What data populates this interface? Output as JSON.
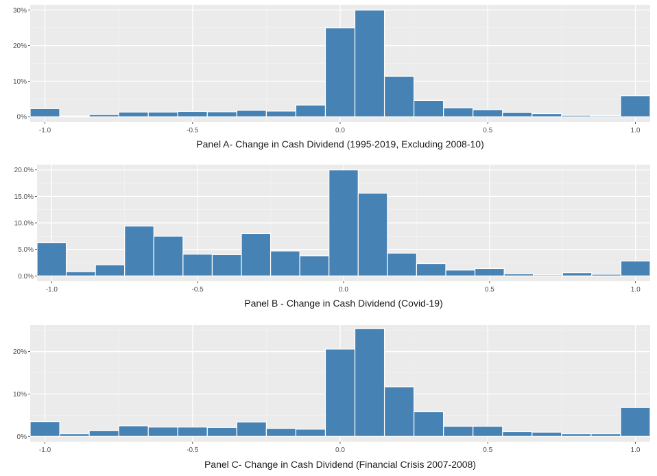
{
  "colors": {
    "panel_bg": "#EBEBEB",
    "grid_major": "#FFFFFF",
    "grid_minor": "#F5F5F5",
    "bar_fill": "#4682B4",
    "bar_stroke": "#FFFFFF",
    "tick_text": "#4D4D4D",
    "title_text": "#1A1A1A"
  },
  "chart_data": [
    {
      "type": "bar",
      "subtype": "histogram",
      "xlabel": "Panel A- Change in Cash Dividend (1995-2019, Excluding 2008-10)",
      "ylabel": "",
      "grid": true,
      "legend": "none",
      "xlim": [
        -1.05,
        1.05
      ],
      "ylim": [
        0,
        30
      ],
      "x_ticks": [
        -1.0,
        -0.5,
        0.0,
        0.5,
        1.0
      ],
      "x_tick_labels": [
        "-1.0",
        "-0.5",
        "0.0",
        "0.5",
        "1.0"
      ],
      "y_ticks": [
        0,
        10,
        20,
        30
      ],
      "y_tick_labels": [
        "0%",
        "10%",
        "20%",
        "30%"
      ],
      "bin_width": 0.1,
      "bin_centers": [
        -1.0,
        -0.9,
        -0.8,
        -0.7,
        -0.6,
        -0.5,
        -0.4,
        -0.3,
        -0.2,
        -0.1,
        0.0,
        0.1,
        0.2,
        0.3,
        0.4,
        0.5,
        0.6,
        0.7,
        0.8,
        0.9,
        1.0
      ],
      "values": [
        2.3,
        0.2,
        0.6,
        1.3,
        1.3,
        1.5,
        1.4,
        1.8,
        1.6,
        3.3,
        25.0,
        30.0,
        11.4,
        4.6,
        2.5,
        2.0,
        1.2,
        0.9,
        0.4,
        0.3,
        5.9
      ]
    },
    {
      "type": "bar",
      "subtype": "histogram",
      "xlabel": "Panel B - Change in Cash Dividend (Covid-19)",
      "ylabel": "",
      "grid": true,
      "legend": "none",
      "xlim": [
        -1.05,
        1.05
      ],
      "ylim": [
        0,
        20
      ],
      "x_ticks": [
        -1.0,
        -0.5,
        0.0,
        0.5,
        1.0
      ],
      "x_tick_labels": [
        "-1.0",
        "-0.5",
        "0.0",
        "0.5",
        "1.0"
      ],
      "y_ticks": [
        0,
        5,
        10,
        15,
        20
      ],
      "y_tick_labels": [
        "0.0%",
        "5.0%",
        "10.0%",
        "15.0%",
        "20.0%"
      ],
      "bin_width": 0.1,
      "bin_centers": [
        -1.0,
        -0.9,
        -0.8,
        -0.7,
        -0.6,
        -0.5,
        -0.4,
        -0.3,
        -0.2,
        -0.1,
        0.0,
        0.1,
        0.2,
        0.3,
        0.4,
        0.5,
        0.6,
        0.7,
        0.8,
        0.9,
        1.0
      ],
      "values": [
        6.3,
        0.8,
        2.1,
        9.4,
        7.5,
        4.1,
        4.0,
        8.0,
        4.7,
        3.8,
        20.0,
        15.6,
        4.3,
        2.3,
        1.1,
        1.4,
        0.4,
        0.2,
        0.6,
        0.3,
        2.8
      ]
    },
    {
      "type": "bar",
      "subtype": "histogram",
      "xlabel": "Panel C- Change in Cash Dividend (Financial Crisis 2007-2008)",
      "ylabel": "",
      "grid": true,
      "legend": "none",
      "xlim": [
        -1.05,
        1.05
      ],
      "ylim": [
        0,
        25
      ],
      "x_ticks": [
        -1.0,
        -0.5,
        0.0,
        0.5,
        1.0
      ],
      "x_tick_labels": [
        "-1.0",
        "-0.5",
        "0.0",
        "0.5",
        "1.0"
      ],
      "y_ticks": [
        0,
        10,
        20
      ],
      "y_tick_labels": [
        "0%",
        "10%",
        "20%"
      ],
      "bin_width": 0.1,
      "bin_centers": [
        -1.0,
        -0.9,
        -0.8,
        -0.7,
        -0.6,
        -0.5,
        -0.4,
        -0.3,
        -0.2,
        -0.1,
        0.0,
        0.1,
        0.2,
        0.3,
        0.4,
        0.5,
        0.6,
        0.7,
        0.8,
        0.9,
        1.0
      ],
      "values": [
        3.5,
        0.6,
        1.4,
        2.5,
        2.2,
        2.2,
        2.1,
        3.4,
        1.9,
        1.7,
        20.6,
        25.4,
        11.7,
        5.8,
        2.4,
        2.4,
        1.1,
        1.0,
        0.6,
        0.6,
        6.8
      ]
    }
  ]
}
